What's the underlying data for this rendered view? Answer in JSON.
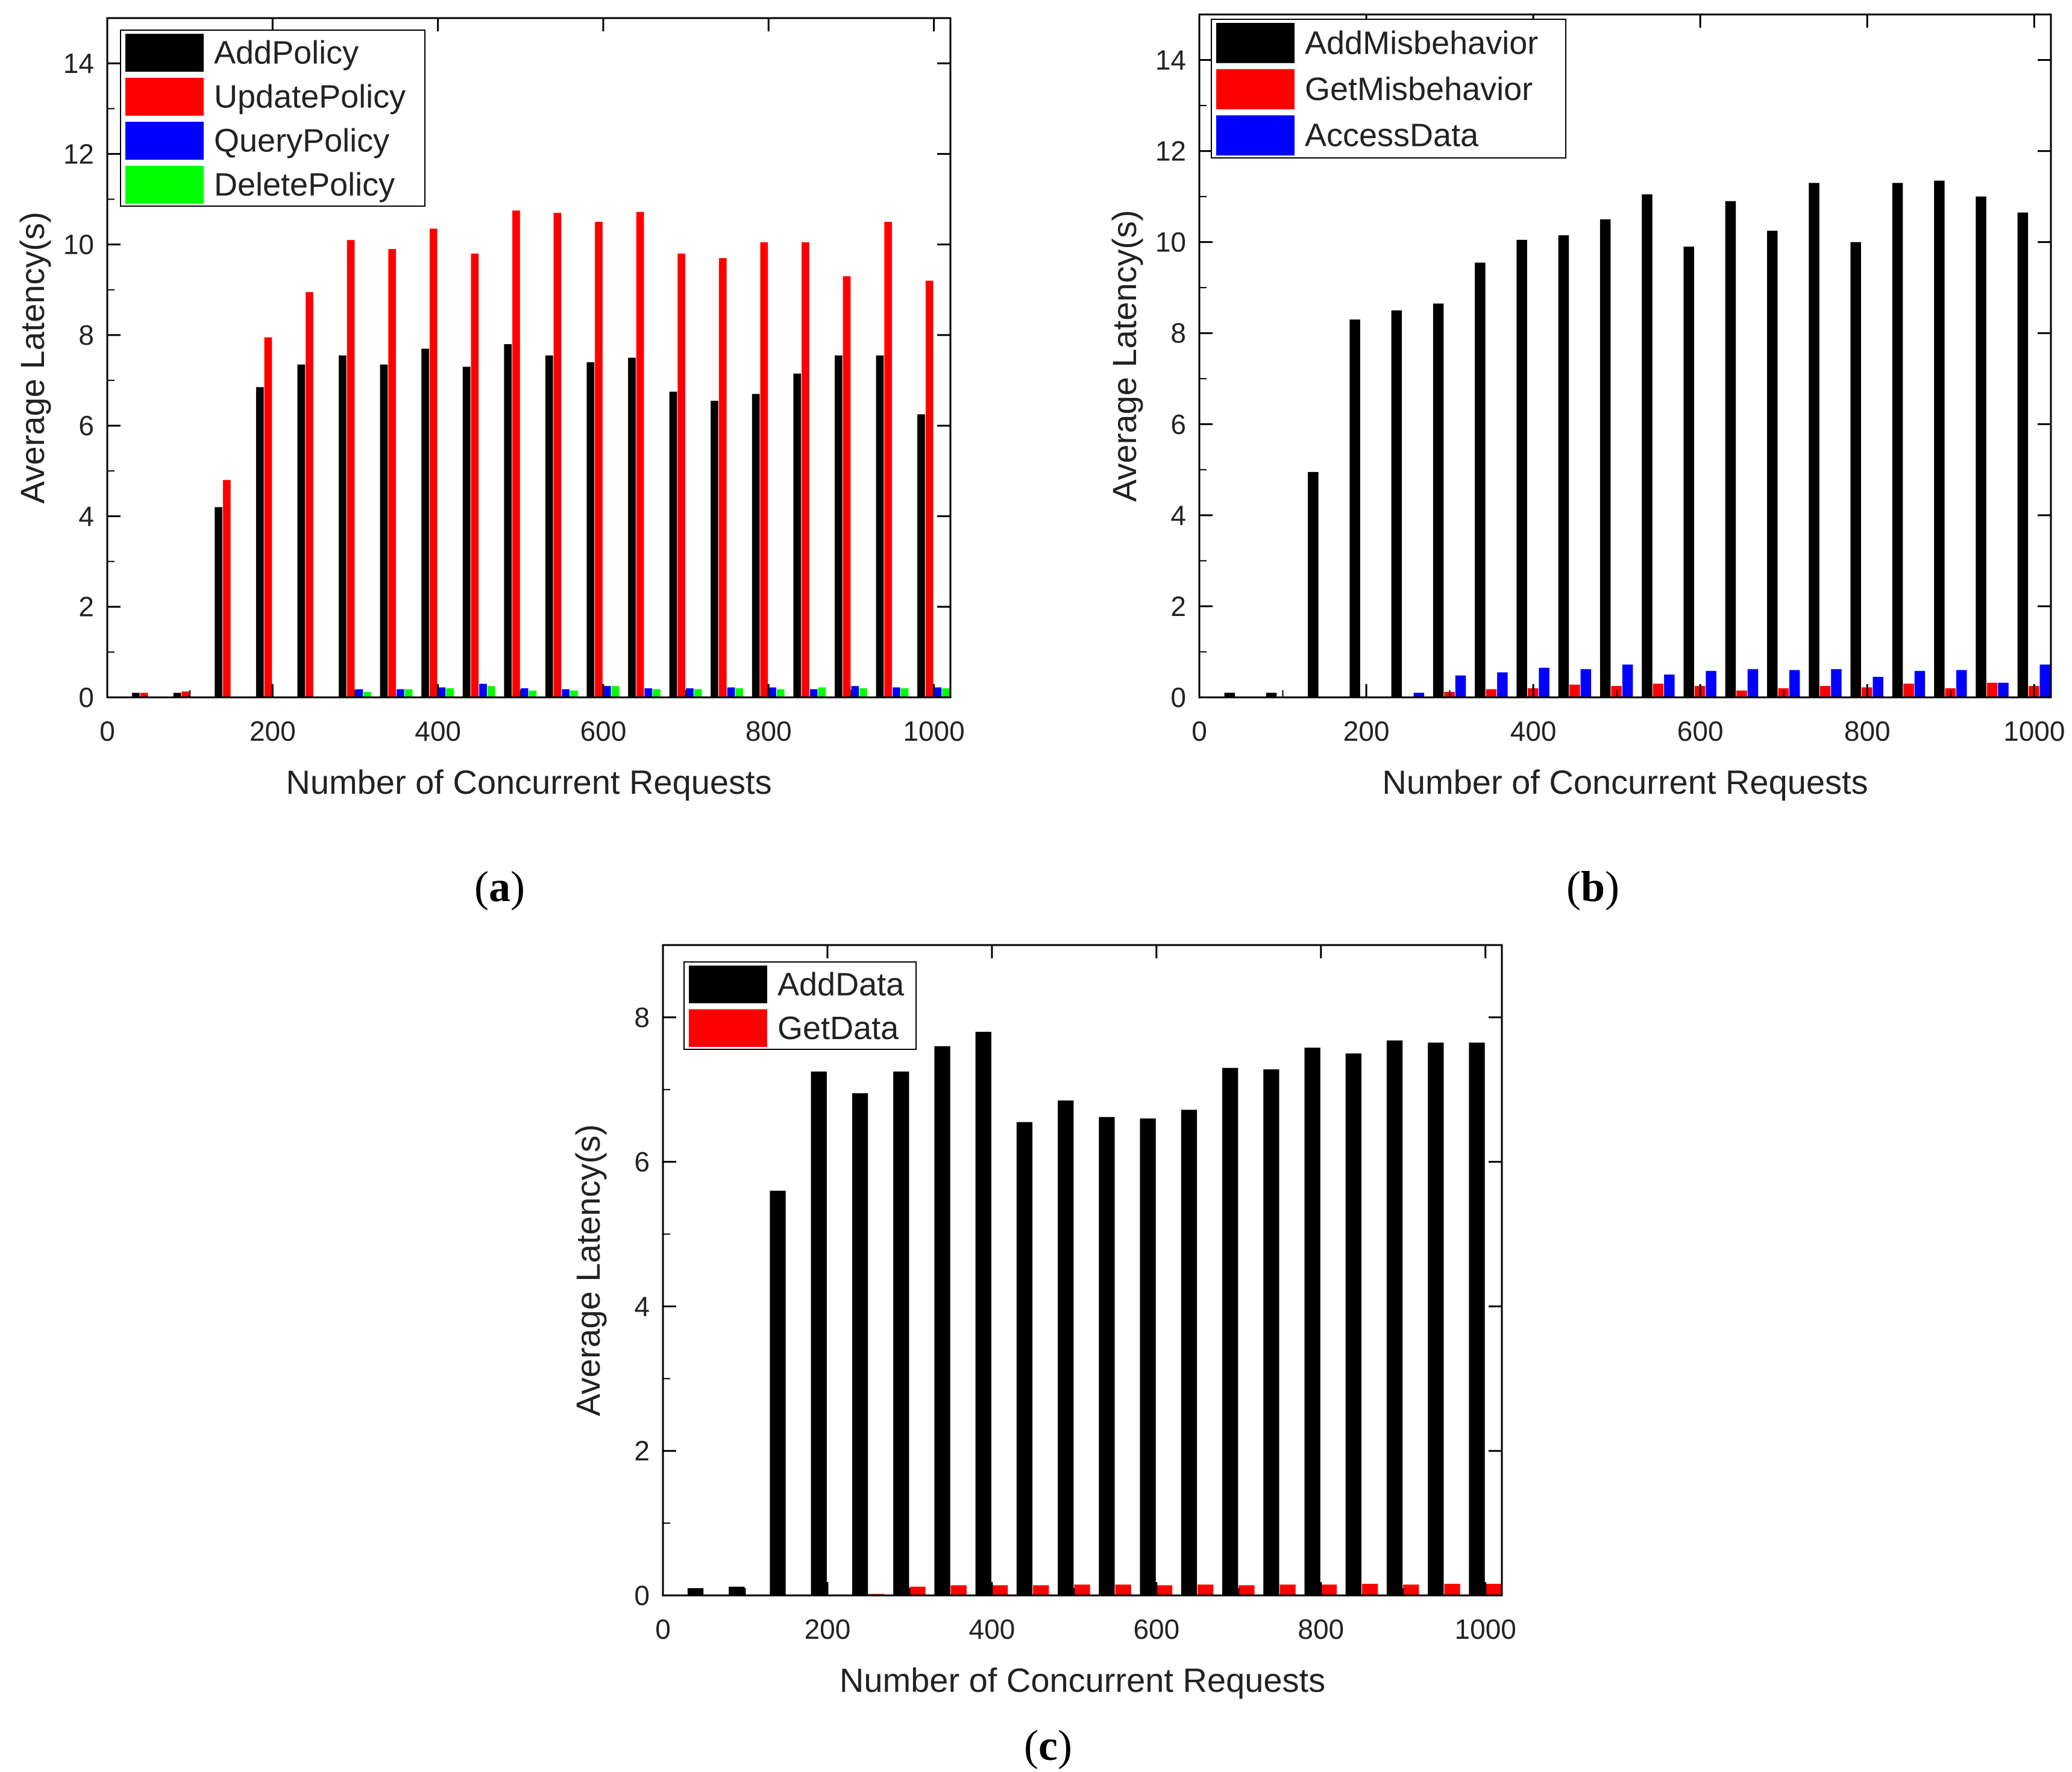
{
  "chart_data": [
    {
      "type": "bar",
      "caption": "(a)",
      "xlabel": "Number of Concurrent Requests",
      "ylabel": "Average Latency(s)",
      "xlim": [
        0,
        1020
      ],
      "ylim": [
        0,
        15
      ],
      "xticks": [
        0,
        200,
        400,
        600,
        800,
        1000
      ],
      "yticks": [
        0,
        2,
        4,
        6,
        8,
        10,
        12,
        14
      ],
      "legend_position": "top-left",
      "x": [
        50,
        100,
        150,
        200,
        250,
        300,
        350,
        400,
        450,
        500,
        550,
        600,
        650,
        700,
        750,
        800,
        850,
        900,
        950,
        1000
      ],
      "series": [
        {
          "name": "AddPolicy",
          "color": "#000000",
          "values": [
            0.1,
            0.1,
            4.2,
            6.85,
            7.35,
            7.55,
            7.35,
            7.7,
            7.3,
            7.8,
            7.55,
            7.4,
            7.5,
            6.75,
            6.55,
            6.7,
            7.15,
            7.55,
            7.55,
            6.25
          ]
        },
        {
          "name": "UpdatePolicy",
          "color": "#ff0000",
          "values": [
            0.1,
            0.13,
            4.8,
            7.95,
            8.95,
            10.1,
            9.9,
            10.35,
            9.8,
            10.75,
            10.7,
            10.5,
            10.72,
            9.8,
            9.7,
            10.05,
            10.05,
            9.3,
            10.5,
            9.2
          ]
        },
        {
          "name": "QueryPolicy",
          "color": "#0000ff",
          "values": [
            0,
            0,
            0,
            0,
            0,
            0.18,
            0.18,
            0.22,
            0.3,
            0.2,
            0.18,
            0.25,
            0.2,
            0.2,
            0.22,
            0.22,
            0.18,
            0.25,
            0.22,
            0.22
          ]
        },
        {
          "name": "DeletePolicy",
          "color": "#00ff00",
          "values": [
            0,
            0,
            0,
            0,
            0,
            0.12,
            0.18,
            0.2,
            0.25,
            0.15,
            0.15,
            0.25,
            0.18,
            0.18,
            0.2,
            0.18,
            0.22,
            0.2,
            0.2,
            0.2
          ]
        }
      ]
    },
    {
      "type": "bar",
      "caption": "(b)",
      "xlabel": "Number of Concurrent Requests",
      "ylabel": "Average Latency(s)",
      "xlim": [
        0,
        1020
      ],
      "ylim": [
        0,
        15
      ],
      "xticks": [
        0,
        200,
        400,
        600,
        800,
        1000
      ],
      "yticks": [
        0,
        2,
        4,
        6,
        8,
        10,
        12,
        14
      ],
      "legend_position": "top-left",
      "x": [
        50,
        100,
        150,
        200,
        250,
        300,
        350,
        400,
        450,
        500,
        550,
        600,
        650,
        700,
        750,
        800,
        850,
        900,
        950,
        1000
      ],
      "series": [
        {
          "name": "AddMisbehavior",
          "color": "#000000",
          "values": [
            0.1,
            0.1,
            4.95,
            8.3,
            8.5,
            8.65,
            9.55,
            10.05,
            10.15,
            10.5,
            11.05,
            9.9,
            10.9,
            10.25,
            11.3,
            10.0,
            11.3,
            11.35,
            11.0,
            10.65
          ]
        },
        {
          "name": "GetMisbehavior",
          "color": "#ff0000",
          "values": [
            0,
            0,
            0,
            0,
            0,
            0.12,
            0.18,
            0.2,
            0.28,
            0.25,
            0.3,
            0.25,
            0.15,
            0.2,
            0.25,
            0.22,
            0.3,
            0.2,
            0.32,
            0.25
          ]
        },
        {
          "name": "AccessData",
          "color": "#0000ff",
          "values": [
            0,
            0,
            0,
            0,
            0.1,
            0.48,
            0.55,
            0.65,
            0.62,
            0.72,
            0.5,
            0.58,
            0.62,
            0.6,
            0.62,
            0.45,
            0.58,
            0.6,
            0.32,
            0.72
          ]
        }
      ]
    },
    {
      "type": "bar",
      "caption": "(c)",
      "xlabel": "Number of Concurrent Requests",
      "ylabel": "Average Latency(s)",
      "xlim": [
        0,
        1020
      ],
      "ylim": [
        0,
        9
      ],
      "xticks": [
        0,
        200,
        400,
        600,
        800,
        1000
      ],
      "yticks": [
        0,
        2,
        4,
        6,
        8
      ],
      "legend_position": "top-left",
      "x": [
        50,
        100,
        150,
        200,
        250,
        300,
        350,
        400,
        450,
        500,
        550,
        600,
        650,
        700,
        750,
        800,
        850,
        900,
        950,
        1000
      ],
      "series": [
        {
          "name": "AddData",
          "color": "#000000",
          "values": [
            0.1,
            0.12,
            5.6,
            7.25,
            6.95,
            7.25,
            7.6,
            7.8,
            6.55,
            6.85,
            6.62,
            6.6,
            6.72,
            7.3,
            7.28,
            7.58,
            7.5,
            7.68,
            7.65,
            7.65
          ]
        },
        {
          "name": "GetData",
          "color": "#ff0000",
          "values": [
            0,
            0,
            0,
            0,
            0.02,
            0.12,
            0.14,
            0.14,
            0.14,
            0.15,
            0.15,
            0.14,
            0.15,
            0.14,
            0.15,
            0.15,
            0.16,
            0.15,
            0.16,
            0.16
          ]
        }
      ]
    }
  ]
}
